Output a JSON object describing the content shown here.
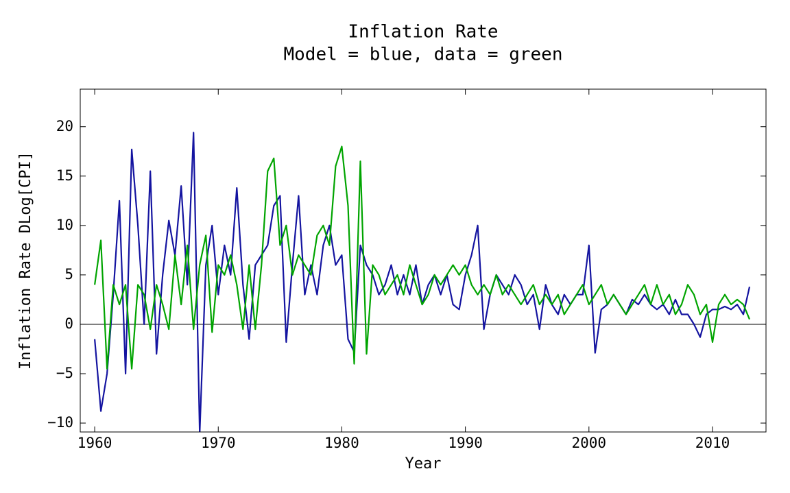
{
  "chart_data": {
    "type": "line",
    "title": "Inflation Rate",
    "subtitle": "Model = blue, data = green",
    "x_label": "Year",
    "y_label": "Inflation Rate DLog[CPI]",
    "xlim": [
      1958.83,
      2014.33
    ],
    "ylim": [
      -10.9,
      23.8
    ],
    "xticks": [
      1960,
      1970,
      1980,
      1990,
      2000,
      2010
    ],
    "yticks": [
      {
        "value": -10,
        "label": "−10"
      },
      {
        "value": -5,
        "label": "−5"
      },
      0,
      5,
      10,
      15,
      20
    ],
    "grid": false,
    "zero_line": true,
    "x": [
      1960.0,
      1960.5,
      1961.0,
      1961.5,
      1962.0,
      1962.5,
      1963.0,
      1963.5,
      1964.0,
      1964.5,
      1965.0,
      1965.5,
      1966.0,
      1966.5,
      1967.0,
      1967.5,
      1968.0,
      1968.5,
      1969.0,
      1969.5,
      1970.0,
      1970.5,
      1971.0,
      1971.5,
      1972.0,
      1972.5,
      1973.0,
      1973.5,
      1974.0,
      1974.5,
      1975.0,
      1975.5,
      1976.0,
      1976.5,
      1977.0,
      1977.5,
      1978.0,
      1978.5,
      1979.0,
      1979.5,
      1980.0,
      1980.5,
      1981.0,
      1981.5,
      1982.0,
      1982.5,
      1983.0,
      1983.5,
      1984.0,
      1984.5,
      1985.0,
      1985.5,
      1986.0,
      1986.5,
      1987.0,
      1987.5,
      1988.0,
      1988.5,
      1989.0,
      1989.5,
      1990.0,
      1990.5,
      1991.0,
      1991.5,
      1992.0,
      1992.5,
      1993.0,
      1993.5,
      1994.0,
      1994.5,
      1995.0,
      1995.5,
      1996.0,
      1996.5,
      1997.0,
      1997.5,
      1998.0,
      1998.5,
      1999.0,
      1999.5,
      2000.0,
      2000.5,
      2001.0,
      2001.5,
      2002.0,
      2002.5,
      2003.0,
      2003.5,
      2004.0,
      2004.5,
      2005.0,
      2005.5,
      2006.0,
      2006.5,
      2007.0,
      2007.5,
      2008.0,
      2008.5,
      2009.0,
      2009.5,
      2010.0,
      2010.5,
      2011.0,
      2011.5,
      2012.0,
      2012.5,
      2013.0
    ],
    "series": [
      {
        "color": "#1414a0",
        "values": [
          -1.5,
          -8.8,
          -5,
          3,
          12.5,
          -5,
          17.7,
          10,
          0,
          15.5,
          -3,
          5,
          10.5,
          7,
          14,
          4,
          19.4,
          -11,
          6,
          10,
          3,
          8,
          5,
          13.8,
          4,
          -1.5,
          6,
          7,
          8,
          12,
          13,
          -1.8,
          6,
          13,
          3,
          6,
          3,
          8,
          10,
          6,
          7,
          -1.5,
          -2.8,
          8,
          6,
          5,
          3,
          4,
          6,
          3,
          5,
          3,
          6,
          2,
          4,
          5,
          3,
          5,
          2,
          1.5,
          5,
          7,
          10,
          -0.5,
          3,
          5,
          4,
          3,
          5,
          4,
          2,
          3,
          -0.5,
          4,
          2,
          1,
          3,
          2,
          3,
          3,
          8,
          -2.9,
          1.5,
          2,
          3,
          2,
          1,
          2.5,
          2,
          3,
          2,
          1.5,
          2,
          1,
          2.5,
          1,
          1,
          0,
          -1.3,
          1,
          1.5,
          1.5,
          1.8,
          1.5,
          2,
          1,
          3.8
        ]
      },
      {
        "color": "#00a400",
        "values": [
          4,
          8.5,
          -4.5,
          4,
          2,
          4,
          -4.5,
          4,
          3,
          -0.5,
          4,
          2,
          -0.5,
          7,
          2,
          8,
          -0.5,
          6,
          9,
          -0.8,
          6,
          5,
          7,
          4,
          -0.5,
          6,
          -0.5,
          6,
          15.5,
          16.8,
          8,
          10,
          5,
          7,
          6,
          5,
          9,
          10,
          8,
          16,
          18,
          12,
          -4,
          16.5,
          -3,
          6,
          5,
          3,
          4,
          5,
          3,
          6,
          4,
          2,
          3,
          5,
          4,
          5,
          6,
          5,
          6,
          4,
          3,
          4,
          3,
          5,
          3,
          4,
          3,
          2,
          3,
          4,
          2,
          3,
          2,
          3,
          1,
          2,
          3,
          4,
          2,
          3,
          4,
          2,
          3,
          2,
          1,
          2,
          3,
          4,
          2,
          4,
          2,
          3,
          1,
          2,
          4,
          3,
          1,
          2,
          -1.8,
          2,
          3,
          2,
          2.5,
          2,
          0.5
        ]
      }
    ]
  }
}
